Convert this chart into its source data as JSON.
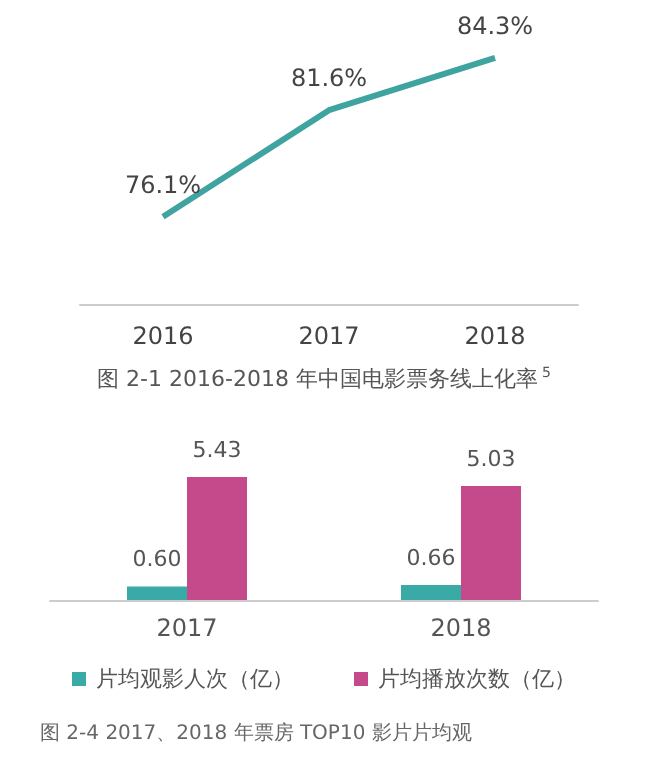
{
  "chart_data": [
    {
      "type": "line",
      "title": "图 2-1 2016-2018 年中国电影票务线上化率$^{5}$",
      "categories": [
        "2016",
        "2017",
        "2018"
      ],
      "series": [
        {
          "color": "#3fa3a0",
          "values": [
            76.1,
            81.6,
            84.3
          ],
          "value_labels": [
            "76.1%",
            "81.6%",
            "84.3%"
          ]
        }
      ],
      "marker": "none",
      "grid": false,
      "legend": false,
      "tick_labels": "x"
    },
    {
      "type": "bar",
      "categories": [
        "2017",
        "2018"
      ],
      "series": [
        {
          "name": "片均观影人次（亿）",
          "color": "#3aaaa6",
          "values": [
            0.6,
            0.66
          ],
          "value_labels": [
            "0.60",
            "0.66"
          ]
        },
        {
          "name": "片均播放次数（亿）",
          "color": "#c54a8c",
          "values": [
            5.43,
            5.03
          ],
          "value_labels": [
            "5.43",
            "5.03"
          ]
        }
      ],
      "grid": false,
      "legend": "bottom",
      "tick_labels": "x",
      "annotations": [
        "图 2-4 2017、2018 年票房 TOP10 影片片均观"
      ]
    }
  ]
}
